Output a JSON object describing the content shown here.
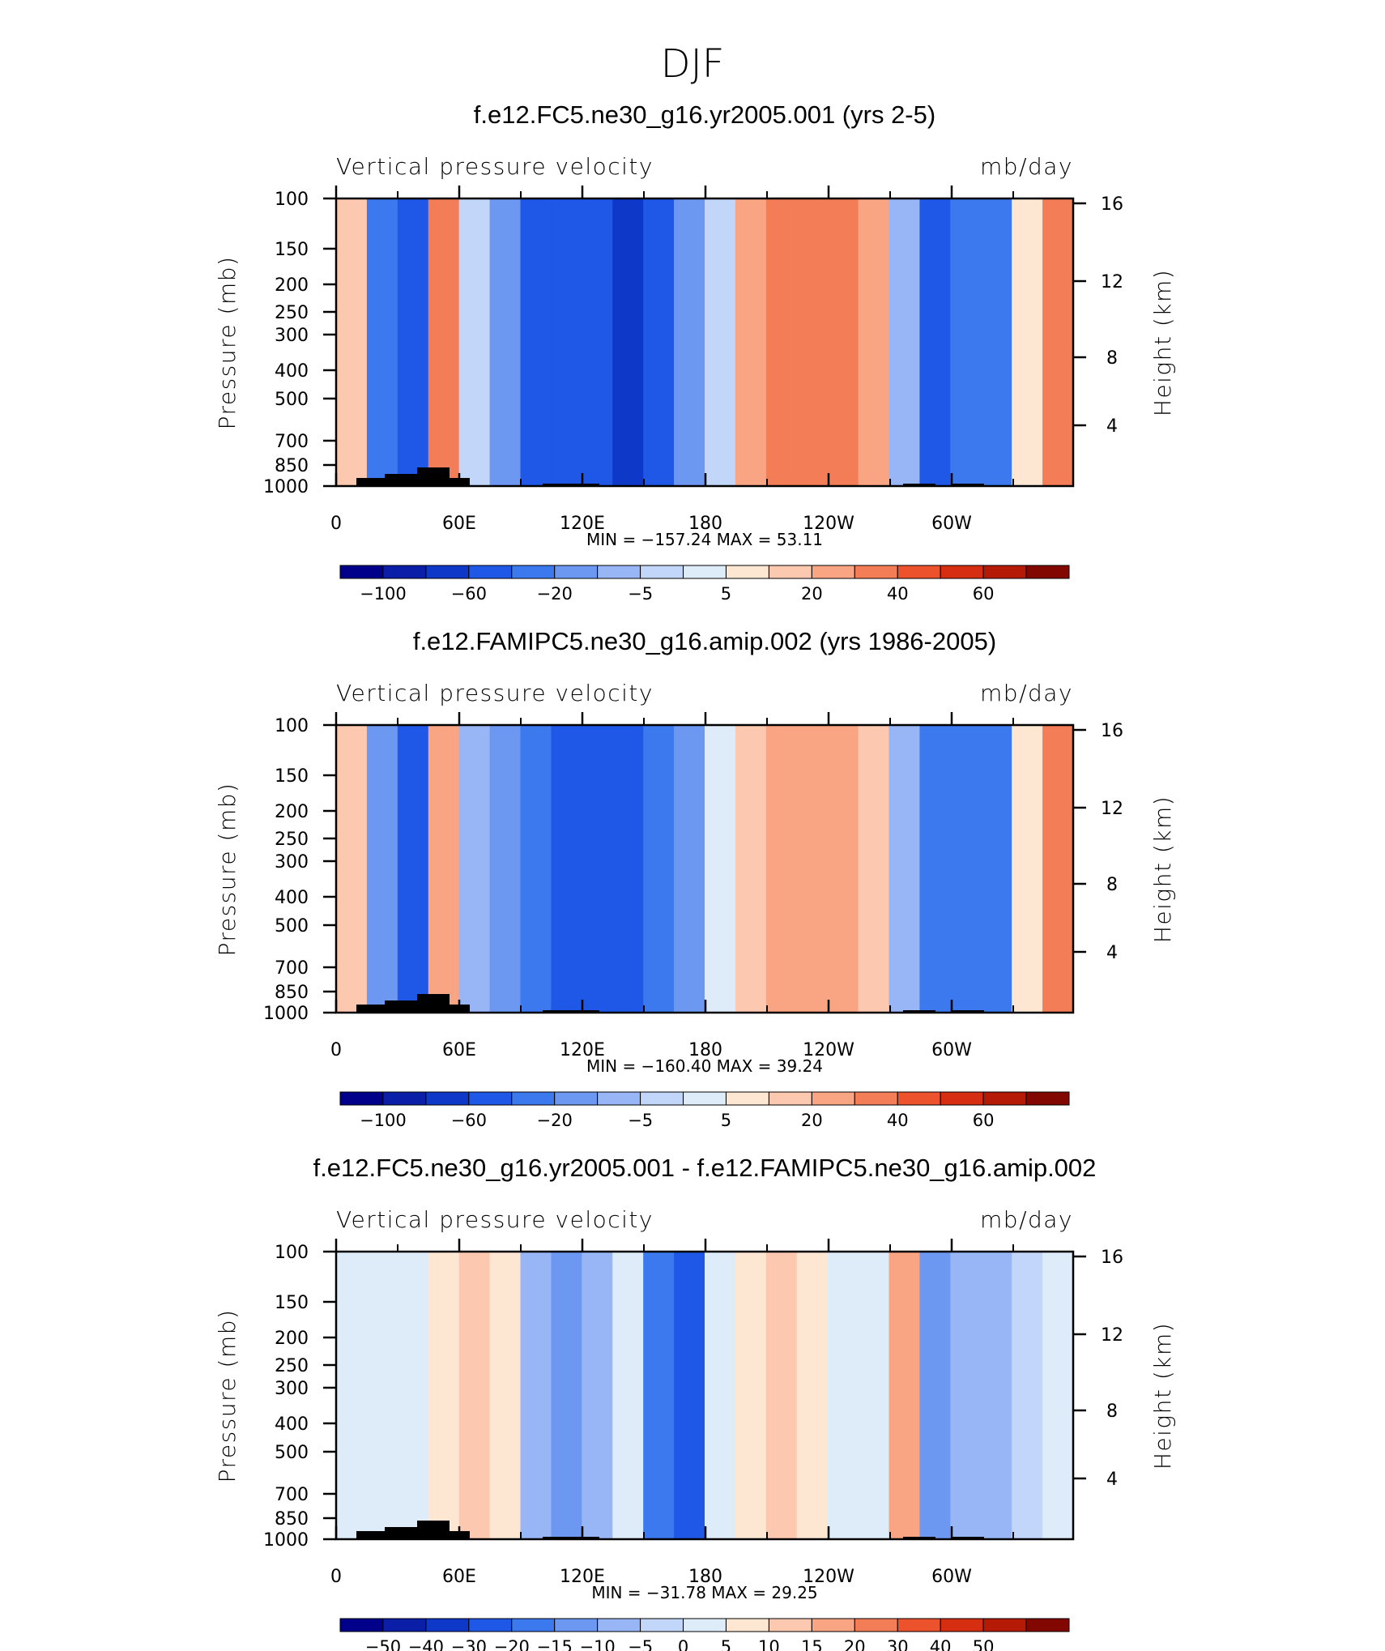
{
  "figure_title": "DJF",
  "colors": {
    "scale_main": [
      "#00008b",
      "#0a1ea8",
      "#0d38c8",
      "#1f57e6",
      "#3c78ee",
      "#6c98f2",
      "#98b6f5",
      "#c1d6f8",
      "#deebf8",
      "#fde7d3",
      "#fcc9b0",
      "#f9a583",
      "#f37d57",
      "#ec532c",
      "#d62e10",
      "#b41a06",
      "#820700"
    ],
    "scale_diff": [
      "#00008b",
      "#0a1ea8",
      "#0d38c8",
      "#1f57e6",
      "#3c78ee",
      "#6c98f2",
      "#98b6f5",
      "#c1d6f8",
      "#deebf8",
      "#fde7d3",
      "#fcc9b0",
      "#f9a583",
      "#f37d57",
      "#ec532c",
      "#d62e10",
      "#b41a06",
      "#820700"
    ],
    "orography": "#000000"
  },
  "chart_data": [
    {
      "type": "heatmap",
      "title": "f.e12.FC5.ne30_g16.yr2005.001 (yrs 2-5)",
      "field_label": "Vertical pressure velocity",
      "units": "mb/day",
      "ylabel": "Pressure (mb)",
      "ylabel_right": "Height (km)",
      "x_ticks": [
        "0",
        "60E",
        "120E",
        "180",
        "120W",
        "60W"
      ],
      "y_ticks": [
        "100",
        "150",
        "200",
        "250",
        "300",
        "400",
        "500",
        "700",
        "850",
        "1000"
      ],
      "y_ticks_right": [
        "16",
        "12",
        "8",
        "4"
      ],
      "stats": "MIN =  −157.24   MAX =   53.11",
      "min": -157.24,
      "max": 53.11,
      "colorbar_labels": [
        "−100",
        "−60",
        "−20",
        "−5",
        "5",
        "20",
        "40",
        "60"
      ],
      "columns": [
        {
          "lon": 0,
          "value": 10
        },
        {
          "lon": 15,
          "value": -40
        },
        {
          "lon": 30,
          "value": -70
        },
        {
          "lon": 45,
          "value": 25
        },
        {
          "lon": 60,
          "value": -5
        },
        {
          "lon": 75,
          "value": -20
        },
        {
          "lon": 90,
          "value": -60
        },
        {
          "lon": 105,
          "value": -70
        },
        {
          "lon": 120,
          "value": -75
        },
        {
          "lon": 135,
          "value": -80
        },
        {
          "lon": 150,
          "value": -65
        },
        {
          "lon": 165,
          "value": -30
        },
        {
          "lon": 180,
          "value": -5
        },
        {
          "lon": 195,
          "value": 15
        },
        {
          "lon": 210,
          "value": 25
        },
        {
          "lon": 225,
          "value": 30
        },
        {
          "lon": 240,
          "value": 30
        },
        {
          "lon": 255,
          "value": 15
        },
        {
          "lon": 270,
          "value": -10
        },
        {
          "lon": 285,
          "value": -60
        },
        {
          "lon": 300,
          "value": -50
        },
        {
          "lon": 315,
          "value": -45
        },
        {
          "lon": 330,
          "value": 5
        },
        {
          "lon": 345,
          "value": 30
        }
      ]
    },
    {
      "type": "heatmap",
      "title": "f.e12.FAMIPC5.ne30_g16.amip.002 (yrs 1986-2005)",
      "field_label": "Vertical pressure velocity",
      "units": "mb/day",
      "ylabel": "Pressure (mb)",
      "ylabel_right": "Height (km)",
      "x_ticks": [
        "0",
        "60E",
        "120E",
        "180",
        "120W",
        "60W"
      ],
      "y_ticks": [
        "100",
        "150",
        "200",
        "250",
        "300",
        "400",
        "500",
        "700",
        "850",
        "1000"
      ],
      "y_ticks_right": [
        "16",
        "12",
        "8",
        "4"
      ],
      "stats": "MIN =  −160.40   MAX =   39.24",
      "min": -160.4,
      "max": 39.24,
      "colorbar_labels": [
        "−100",
        "−60",
        "−20",
        "−5",
        "5",
        "20",
        "40",
        "60"
      ],
      "columns": [
        {
          "lon": 0,
          "value": 8
        },
        {
          "lon": 15,
          "value": -35
        },
        {
          "lon": 30,
          "value": -60
        },
        {
          "lon": 45,
          "value": 20
        },
        {
          "lon": 60,
          "value": -10
        },
        {
          "lon": 75,
          "value": -30
        },
        {
          "lon": 90,
          "value": -55
        },
        {
          "lon": 105,
          "value": -60
        },
        {
          "lon": 120,
          "value": -65
        },
        {
          "lon": 135,
          "value": -60
        },
        {
          "lon": 150,
          "value": -50
        },
        {
          "lon": 165,
          "value": -25
        },
        {
          "lon": 180,
          "value": -3
        },
        {
          "lon": 195,
          "value": 10
        },
        {
          "lon": 210,
          "value": 15
        },
        {
          "lon": 225,
          "value": 20
        },
        {
          "lon": 240,
          "value": 18
        },
        {
          "lon": 255,
          "value": 8
        },
        {
          "lon": 270,
          "value": -15
        },
        {
          "lon": 285,
          "value": -55
        },
        {
          "lon": 300,
          "value": -45
        },
        {
          "lon": 315,
          "value": -40
        },
        {
          "lon": 330,
          "value": 5
        },
        {
          "lon": 345,
          "value": 25
        }
      ]
    },
    {
      "type": "heatmap",
      "title": "f.e12.FC5.ne30_g16.yr2005.001 - f.e12.FAMIPC5.ne30_g16.amip.002",
      "field_label": "Vertical pressure velocity",
      "units": "mb/day",
      "ylabel": "Pressure (mb)",
      "ylabel_right": "Height (km)",
      "x_ticks": [
        "0",
        "60E",
        "120E",
        "180",
        "120W",
        "60W"
      ],
      "y_ticks": [
        "100",
        "150",
        "200",
        "250",
        "300",
        "400",
        "500",
        "700",
        "850",
        "1000"
      ],
      "y_ticks_right": [
        "16",
        "12",
        "8",
        "4"
      ],
      "stats": "MIN =  −31.78   MAX =   29.25",
      "min": -31.78,
      "max": 29.25,
      "colorbar_labels": [
        "−50",
        "−40",
        "−30",
        "−20",
        "−15",
        "−10",
        "−5",
        "0",
        "5",
        "10",
        "15",
        "20",
        "30",
        "40",
        "50"
      ],
      "columns": [
        {
          "lon": 0,
          "value": 2
        },
        {
          "lon": 15,
          "value": 3
        },
        {
          "lon": 30,
          "value": 4
        },
        {
          "lon": 45,
          "value": 8
        },
        {
          "lon": 60,
          "value": 12
        },
        {
          "lon": 75,
          "value": 6
        },
        {
          "lon": 90,
          "value": -8
        },
        {
          "lon": 105,
          "value": -12
        },
        {
          "lon": 120,
          "value": -6
        },
        {
          "lon": 135,
          "value": 4
        },
        {
          "lon": 150,
          "value": -15
        },
        {
          "lon": 165,
          "value": -22
        },
        {
          "lon": 180,
          "value": 3
        },
        {
          "lon": 195,
          "value": 10
        },
        {
          "lon": 210,
          "value": 12
        },
        {
          "lon": 225,
          "value": 6
        },
        {
          "lon": 240,
          "value": 3
        },
        {
          "lon": 255,
          "value": 2
        },
        {
          "lon": 270,
          "value": 20
        },
        {
          "lon": 285,
          "value": -12
        },
        {
          "lon": 300,
          "value": -6
        },
        {
          "lon": 315,
          "value": -5
        },
        {
          "lon": 330,
          "value": -3
        },
        {
          "lon": 345,
          "value": 2
        }
      ]
    }
  ]
}
